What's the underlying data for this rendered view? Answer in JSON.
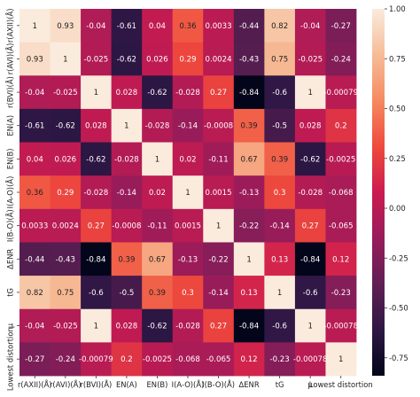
{
  "chart_data": {
    "type": "heatmap",
    "title": "",
    "xlabel": "",
    "ylabel": "",
    "row_labels": [
      "r(AXII)(Å)",
      "r(AVI)(Å)",
      "r(BVI)(Å)",
      "EN(A)",
      "EN(B)",
      "I(A-O)(Å)",
      "I(B-O)(Å)",
      "ΔENR",
      "tG",
      "μ",
      "Lowest distortion"
    ],
    "col_labels": [
      "r(AXII)(Å)",
      "r(AVI)(Å)",
      "r(BVI)(Å)",
      "EN(A)",
      "EN(B)",
      "I(A-O)(Å)",
      "I(B-O)(Å)",
      "ΔENR",
      "tG",
      "μ",
      "Lowest distortion"
    ],
    "values": [
      [
        1,
        0.93,
        -0.04,
        -0.61,
        0.04,
        0.36,
        0.0033,
        -0.44,
        0.82,
        -0.04,
        -0.27
      ],
      [
        0.93,
        1,
        -0.025,
        -0.62,
        0.026,
        0.29,
        0.0024,
        -0.43,
        0.75,
        -0.025,
        -0.24
      ],
      [
        -0.04,
        -0.025,
        1,
        0.028,
        -0.62,
        -0.028,
        0.27,
        -0.84,
        -0.6,
        1,
        -0.00079
      ],
      [
        -0.61,
        -0.62,
        0.028,
        1,
        -0.028,
        -0.14,
        -0.0008,
        0.39,
        -0.5,
        0.028,
        0.2
      ],
      [
        0.04,
        0.026,
        -0.62,
        -0.028,
        1,
        0.02,
        -0.11,
        0.67,
        0.39,
        -0.62,
        -0.0025
      ],
      [
        0.36,
        0.29,
        -0.028,
        -0.14,
        0.02,
        1,
        0.0015,
        -0.13,
        0.3,
        -0.028,
        -0.068
      ],
      [
        0.0033,
        0.0024,
        0.27,
        -0.0008,
        -0.11,
        0.0015,
        1,
        -0.22,
        -0.14,
        0.27,
        -0.065
      ],
      [
        -0.44,
        -0.43,
        -0.84,
        0.39,
        0.67,
        -0.13,
        -0.22,
        1,
        0.13,
        -0.84,
        0.12
      ],
      [
        0.82,
        0.75,
        -0.6,
        -0.5,
        0.39,
        0.3,
        -0.14,
        0.13,
        1,
        -0.6,
        -0.23
      ],
      [
        -0.04,
        -0.025,
        1,
        0.028,
        -0.62,
        -0.028,
        0.27,
        -0.84,
        -0.6,
        1,
        -0.00078
      ],
      [
        -0.27,
        -0.24,
        -0.00079,
        0.2,
        -0.0025,
        -0.068,
        -0.065,
        0.12,
        -0.23,
        -0.00078,
        1
      ]
    ],
    "display_values": [
      [
        "1",
        "0.93",
        "-0.04",
        "-0.61",
        "0.04",
        "0.36",
        "0.0033",
        "-0.44",
        "0.82",
        "-0.04",
        "-0.27"
      ],
      [
        "0.93",
        "1",
        "-0.025",
        "-0.62",
        "0.026",
        "0.29",
        "0.0024",
        "-0.43",
        "0.75",
        "-0.025",
        "-0.24"
      ],
      [
        "-0.04",
        "-0.025",
        "1",
        "0.028",
        "-0.62",
        "-0.028",
        "0.27",
        "-0.84",
        "-0.6",
        "1",
        "-0.00079"
      ],
      [
        "-0.61",
        "-0.62",
        "0.028",
        "1",
        "-0.028",
        "-0.14",
        "-0.0008",
        "0.39",
        "-0.5",
        "0.028",
        "0.2"
      ],
      [
        "0.04",
        "0.026",
        "-0.62",
        "-0.028",
        "1",
        "0.02",
        "-0.11",
        "0.67",
        "0.39",
        "-0.62",
        "-0.0025"
      ],
      [
        "0.36",
        "0.29",
        "-0.028",
        "-0.14",
        "0.02",
        "1",
        "0.0015",
        "-0.13",
        "0.3",
        "-0.028",
        "-0.068"
      ],
      [
        "0.0033",
        "0.0024",
        "0.27",
        "-0.0008",
        "-0.11",
        "0.0015",
        "1",
        "-0.22",
        "-0.14",
        "0.27",
        "-0.065"
      ],
      [
        "-0.44",
        "-0.43",
        "-0.84",
        "0.39",
        "0.67",
        "-0.13",
        "-0.22",
        "1",
        "0.13",
        "-0.84",
        "0.12"
      ],
      [
        "0.82",
        "0.75",
        "-0.6",
        "-0.5",
        "0.39",
        "0.3",
        "-0.14",
        "0.13",
        "1",
        "-0.6",
        "-0.23"
      ],
      [
        "-0.04",
        "-0.025",
        "1",
        "0.028",
        "-0.62",
        "-0.028",
        "0.27",
        "-0.84",
        "-0.6",
        "1",
        "-0.00078"
      ],
      [
        "-0.27",
        "-0.24",
        "-0.00079",
        "0.2",
        "-0.0025",
        "-0.068",
        "-0.065",
        "0.12",
        "-0.23",
        "-0.00078",
        "1"
      ]
    ],
    "colorbar": {
      "ticks": [
        1.0,
        0.75,
        0.5,
        0.25,
        0.0,
        -0.25,
        -0.5,
        -0.75
      ],
      "tick_labels": [
        "1.00",
        "0.75",
        "0.50",
        "0.25",
        "0.00",
        "-0.25",
        "-0.50",
        "-0.75"
      ],
      "range": [
        -0.84,
        1.0
      ]
    },
    "colormap": {
      "name": "rocket",
      "stops": [
        "#03051a",
        "#2e1745",
        "#611f53",
        "#971c5b",
        "#cb1b4f",
        "#ef4a3c",
        "#f58a61",
        "#f6bc97",
        "#faebdd"
      ]
    },
    "annotation_text_colors": {
      "light_cells": "#222222",
      "dark_cells": "#ffffff"
    }
  }
}
